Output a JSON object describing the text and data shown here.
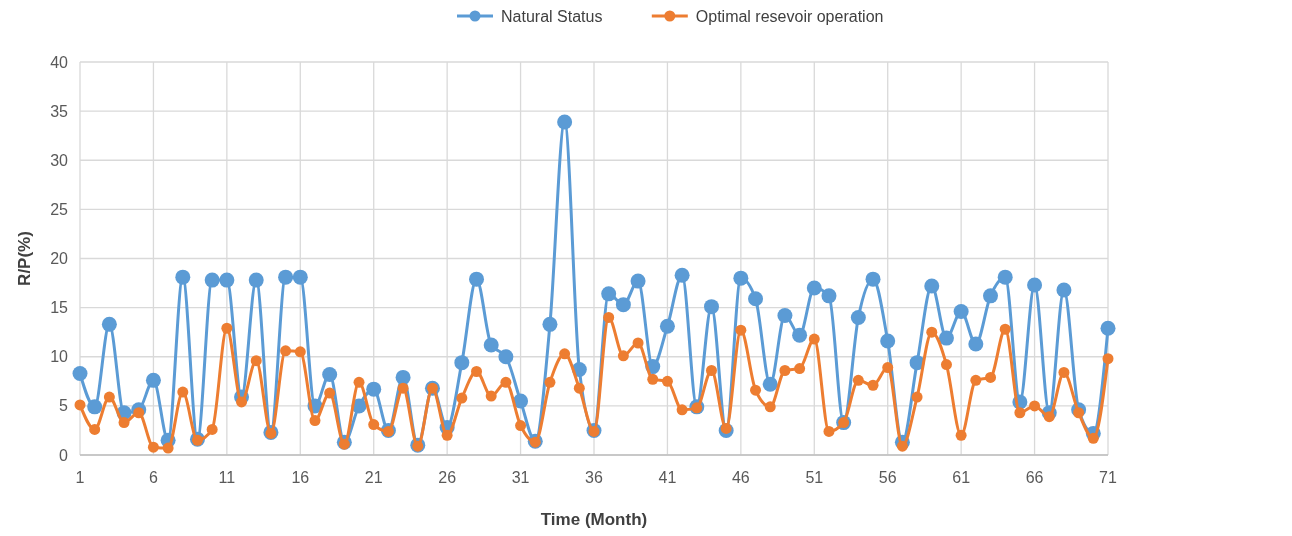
{
  "chart_data": {
    "type": "line",
    "xlabel": "Time (Month)",
    "ylabel": "R/P(%)",
    "x": [
      1,
      2,
      3,
      4,
      5,
      6,
      7,
      8,
      9,
      10,
      11,
      12,
      13,
      14,
      15,
      16,
      17,
      18,
      19,
      20,
      21,
      22,
      23,
      24,
      25,
      26,
      27,
      28,
      29,
      30,
      31,
      32,
      33,
      34,
      35,
      36,
      37,
      38,
      39,
      40,
      41,
      42,
      43,
      44,
      45,
      46,
      47,
      48,
      49,
      50,
      51,
      52,
      53,
      54,
      55,
      56,
      57,
      58,
      59,
      60,
      61,
      62,
      63,
      64,
      65,
      66,
      67,
      68,
      69,
      70,
      71
    ],
    "xlim": [
      1,
      71
    ],
    "xticks": [
      1,
      6,
      11,
      16,
      21,
      26,
      31,
      36,
      41,
      46,
      51,
      56,
      61,
      66,
      71
    ],
    "ylim": [
      0,
      40
    ],
    "yticks": [
      0,
      5,
      10,
      15,
      20,
      25,
      30,
      35,
      40
    ],
    "grid": true,
    "legend": "top",
    "marker": "circle",
    "line_style": "solid",
    "series": [
      {
        "name": "Natural Status",
        "color": "#5b9bd5",
        "values": [
          8.3,
          4.9,
          13.3,
          4.3,
          4.6,
          7.6,
          1.5,
          18.1,
          1.6,
          17.8,
          17.8,
          5.9,
          17.8,
          2.3,
          18.1,
          18.1,
          5.0,
          8.2,
          1.3,
          5.0,
          6.7,
          2.5,
          7.9,
          1.0,
          6.8,
          2.8,
          9.4,
          17.9,
          11.2,
          10.0,
          5.5,
          1.4,
          13.3,
          33.9,
          8.7,
          2.5,
          16.4,
          15.3,
          17.7,
          9.0,
          13.1,
          18.3,
          4.9,
          15.1,
          2.5,
          18.0,
          15.9,
          7.2,
          14.2,
          12.2,
          17.0,
          16.2,
          3.3,
          14.0,
          17.9,
          11.6,
          1.3,
          9.4,
          17.2,
          11.9,
          14.6,
          11.3,
          16.2,
          18.1,
          5.4,
          17.3,
          4.3,
          16.8,
          4.6,
          2.2,
          12.9
        ]
      },
      {
        "name": "Optimal resevoir operation",
        "color": "#ed7d31",
        "values": [
          5.1,
          2.6,
          5.9,
          3.3,
          4.3,
          0.8,
          0.7,
          6.4,
          1.5,
          2.6,
          12.9,
          5.4,
          9.6,
          2.2,
          10.6,
          10.5,
          3.5,
          6.3,
          1.1,
          7.4,
          3.1,
          2.4,
          6.8,
          0.9,
          6.8,
          2.0,
          5.8,
          8.5,
          6.0,
          7.4,
          3.0,
          1.3,
          7.4,
          10.3,
          6.8,
          2.4,
          14.0,
          10.1,
          11.4,
          7.7,
          7.5,
          4.6,
          4.8,
          8.6,
          2.7,
          12.7,
          6.6,
          4.9,
          8.6,
          8.8,
          11.8,
          2.4,
          3.3,
          7.6,
          7.1,
          8.9,
          0.9,
          5.9,
          12.5,
          9.2,
          2.0,
          7.6,
          7.9,
          12.8,
          4.3,
          5.0,
          3.9,
          8.4,
          4.3,
          1.7,
          9.8
        ]
      }
    ]
  }
}
